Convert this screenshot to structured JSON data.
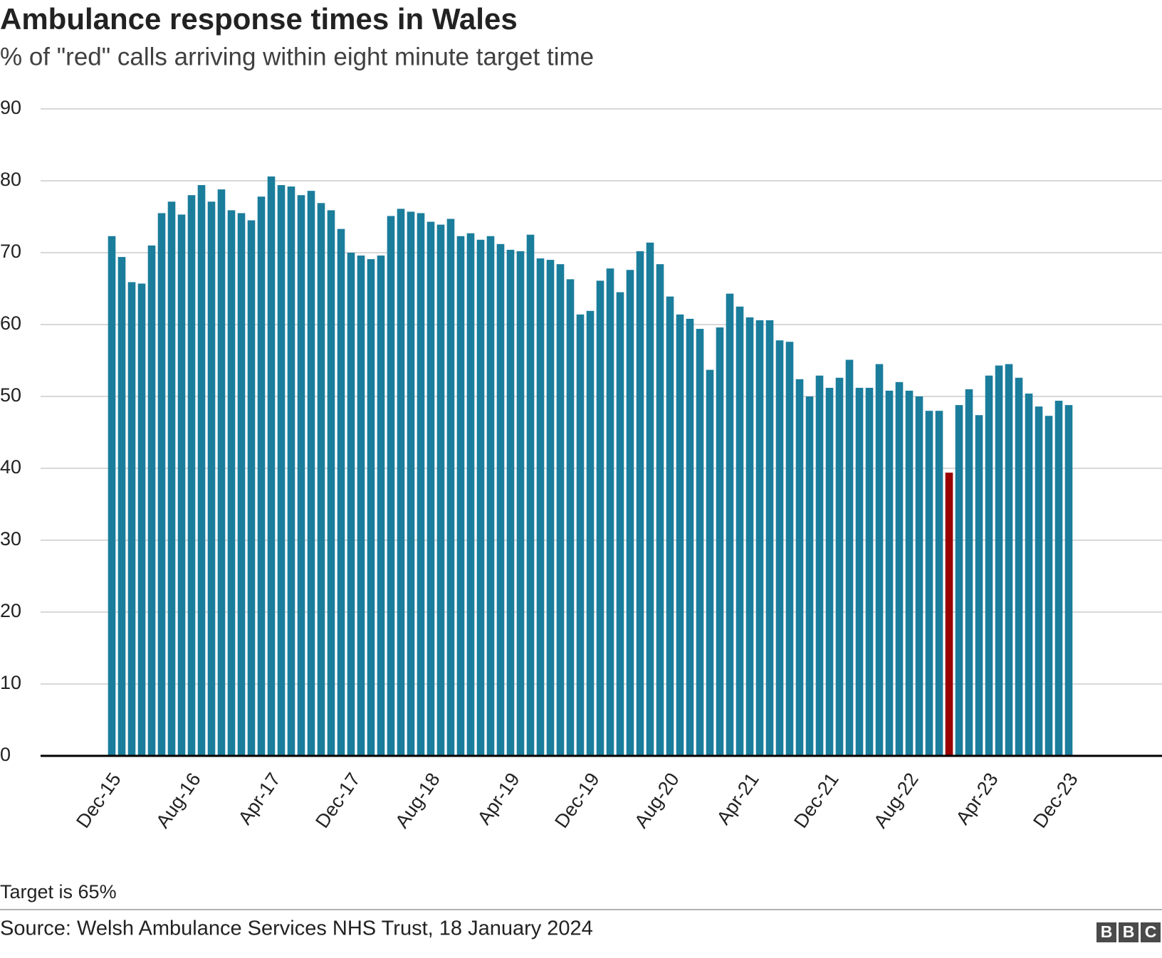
{
  "chart_data": {
    "type": "bar",
    "title": "Ambulance response times in Wales",
    "subtitle": "% of \"red\" calls arriving within eight minute target time",
    "note": "Target is 65%",
    "source": "Source: Welsh Ambulance Services NHS Trust, 18 January 2024",
    "logo": [
      "B",
      "B",
      "C"
    ],
    "categories": [
      "Dec-15",
      null,
      null,
      null,
      null,
      null,
      null,
      null,
      "Aug-16",
      null,
      null,
      null,
      null,
      null,
      null,
      null,
      "Apr-17",
      null,
      null,
      null,
      null,
      null,
      null,
      null,
      "Dec-17",
      null,
      null,
      null,
      null,
      null,
      null,
      null,
      "Aug-18",
      null,
      null,
      null,
      null,
      null,
      null,
      null,
      "Apr-19",
      null,
      null,
      null,
      null,
      null,
      null,
      null,
      "Dec-19",
      null,
      null,
      null,
      null,
      null,
      null,
      null,
      "Aug-20",
      null,
      null,
      null,
      null,
      null,
      null,
      null,
      "Apr-21",
      null,
      null,
      null,
      null,
      null,
      null,
      null,
      "Dec-21",
      null,
      null,
      null,
      null,
      null,
      null,
      null,
      "Aug-22",
      null,
      null,
      null,
      null,
      null,
      null,
      null,
      "Apr-23",
      null,
      null,
      null,
      null,
      null,
      null,
      null,
      "Dec-23"
    ],
    "values": [
      72.3,
      69.4,
      65.9,
      65.7,
      71.0,
      75.5,
      77.1,
      75.3,
      78.0,
      79.4,
      77.1,
      78.8,
      75.9,
      75.5,
      74.5,
      77.8,
      80.6,
      79.4,
      79.2,
      78.0,
      78.6,
      76.9,
      75.9,
      73.3,
      70.0,
      69.6,
      69.1,
      69.6,
      75.1,
      76.1,
      75.7,
      75.5,
      74.3,
      73.9,
      74.7,
      72.3,
      72.7,
      71.8,
      72.3,
      71.2,
      70.4,
      70.2,
      72.5,
      69.2,
      69.0,
      68.4,
      66.3,
      61.4,
      61.9,
      66.1,
      67.8,
      64.5,
      67.6,
      70.2,
      71.4,
      68.4,
      63.9,
      61.4,
      60.8,
      59.4,
      53.7,
      59.6,
      64.3,
      62.5,
      61.0,
      60.6,
      60.6,
      57.8,
      57.6,
      52.4,
      50.0,
      52.9,
      51.2,
      52.6,
      55.1,
      51.2,
      51.2,
      54.5,
      50.8,
      52.0,
      50.8,
      50.0,
      48.0,
      48.0,
      39.4,
      48.8,
      51.0,
      47.4,
      52.9,
      54.3,
      54.5,
      52.6,
      50.4,
      48.6,
      47.3,
      49.4,
      48.8
    ],
    "color": "#1b7d9c",
    "highlight": {
      "index": 84,
      "color": "#990000"
    },
    "ylim": [
      0,
      90
    ],
    "yticks": [
      0,
      10,
      20,
      30,
      40,
      50,
      60,
      70,
      80,
      90
    ],
    "grid": true
  }
}
